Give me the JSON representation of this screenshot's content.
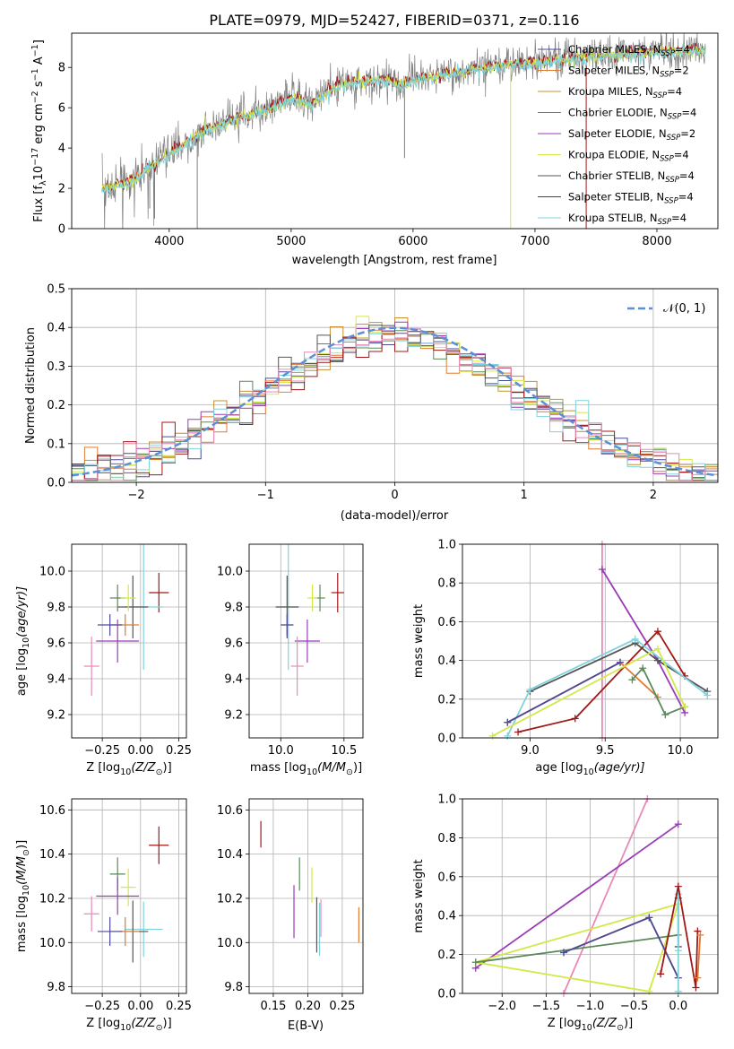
{
  "title": "PLATE=0979, MJD=52427, FIBERID=0371, z=0.116",
  "colors": {
    "chabrier_miles": "#4a4a9a",
    "salpeter_miles": "#e07b30",
    "kroupa_miles": "#c89030",
    "chabrier_elodie": "#5a8a5a",
    "salpeter_elodie": "#9a3cb8",
    "kroupa_elodie": "#d4e84a",
    "chabrier_stelib": "#555555",
    "salpeter_stelib": "#a01818",
    "kroupa_stelib": "#7fd3dc",
    "pink": "#e88ab8",
    "normal_curve": "#5b8fd9"
  },
  "chart_data": [
    {
      "type": "line",
      "title": "PLATE=0979, MJD=52427, FIBERID=0371, z=0.116",
      "xlabel": "wavelength [Angstrom, rest frame]",
      "ylabel_main": "Flux [f",
      "ylabel_sub": "λ",
      "ylabel_rest": "10",
      "ylabel_exp": "−17",
      "ylabel_units": " erg cm",
      "ylabel_units_exp": "−2",
      "ylabel_s": " s",
      "ylabel_s_exp": "−1",
      "ylabel_A": " A",
      "ylabel_A_exp": "−1",
      "ylabel_close": "]",
      "xlim": [
        3200,
        8500
      ],
      "ylim": [
        0,
        9.7
      ],
      "xticks": [
        "4000",
        "5000",
        "6000",
        "7000",
        "8000"
      ],
      "yticks": [
        "0",
        "2",
        "4",
        "6",
        "8"
      ],
      "legend_placement": "right",
      "legend": [
        {
          "name": "Chabrier MILES, N",
          "sub": "SSP",
          "tail": "=4"
        },
        {
          "name": "Salpeter MILES, N",
          "sub": "SSP",
          "tail": "=2"
        },
        {
          "name": "Kroupa MILES, N",
          "sub": "SSP",
          "tail": "=4"
        },
        {
          "name": "Chabrier ELODIE, N",
          "sub": "SSP",
          "tail": "=4"
        },
        {
          "name": "Salpeter ELODIE, N",
          "sub": "SSP",
          "tail": "=2"
        },
        {
          "name": "Kroupa ELODIE, N",
          "sub": "SSP",
          "tail": "=4"
        },
        {
          "name": "Chabrier STELIB, N",
          "sub": "SSP",
          "tail": "=4"
        },
        {
          "name": "Salpeter STELIB, N",
          "sub": "SSP",
          "tail": "=4"
        },
        {
          "name": "Kroupa STELIB, N",
          "sub": "SSP",
          "tail": "=4"
        }
      ],
      "continuum": [
        [
          3450,
          2.0
        ],
        [
          3700,
          2.4
        ],
        [
          3950,
          3.6
        ],
        [
          4100,
          4.1
        ],
        [
          4300,
          4.9
        ],
        [
          4600,
          5.6
        ],
        [
          4862,
          6.1
        ],
        [
          5000,
          6.5
        ],
        [
          5175,
          6.2
        ],
        [
          5300,
          6.9
        ],
        [
          5500,
          7.3
        ],
        [
          5800,
          7.4
        ],
        [
          5890,
          7.1
        ],
        [
          6000,
          7.4
        ],
        [
          6300,
          7.7
        ],
        [
          6563,
          8.0
        ],
        [
          6800,
          8.2
        ],
        [
          7000,
          8.3
        ],
        [
          7500,
          8.6
        ],
        [
          8000,
          8.8
        ],
        [
          8400,
          8.9
        ]
      ]
    },
    {
      "type": "bar",
      "xlabel": "(data-model)/error",
      "ylabel": "Normed distribution",
      "xlim": [
        -2.5,
        2.5
      ],
      "ylim": [
        0,
        0.5
      ],
      "xticks": [
        "−2",
        "−1",
        "0",
        "1",
        "2"
      ],
      "yticks": [
        "0.0",
        "0.1",
        "0.2",
        "0.3",
        "0.4",
        "0.5"
      ],
      "legend_label": "𝒩(0, 1)",
      "legend_placement": "top-right",
      "bin_width": 0.1,
      "bin_start": -2.5
    },
    {
      "type": "scatter",
      "xlabel": "Z [log",
      "xlabel_sub": "10",
      "xlabel_rest": "(Z/Z",
      "xlabel_sun": "⊙",
      "xlabel_close": ")]",
      "ylabel": "age  [log",
      "ylabel_sub": "10",
      "ylabel_rest": "(age/yr)]",
      "xlim": [
        -0.45,
        0.3
      ],
      "ylim": [
        9.07,
        10.15
      ],
      "xticks": [
        "−0.25",
        "0.00",
        "0.25"
      ],
      "yticks": [
        "9.2",
        "9.4",
        "9.6",
        "9.8",
        "10.0"
      ],
      "points": [
        {
          "c": "salpeter_stelib",
          "x": 0.12,
          "y": 9.88,
          "xe": 0.13,
          "ye": 0.22
        },
        {
          "c": "kroupa_stelib",
          "x": 0.02,
          "y": 9.8,
          "xe": 0.25,
          "ye": 0.7
        },
        {
          "c": "chabrier_stelib",
          "x": -0.05,
          "y": 9.8,
          "xe": 0.2,
          "ye": 0.35
        },
        {
          "c": "chabrier_elodie",
          "x": -0.15,
          "y": 9.85,
          "xe": 0.1,
          "ye": 0.15
        },
        {
          "c": "kroupa_elodie",
          "x": -0.08,
          "y": 9.85,
          "xe": 0.1,
          "ye": 0.15
        },
        {
          "c": "salpeter_miles",
          "x": -0.1,
          "y": 9.7,
          "xe": 0.18,
          "ye": 0.12
        },
        {
          "c": "chabrier_miles",
          "x": -0.2,
          "y": 9.7,
          "xe": 0.16,
          "ye": 0.12
        },
        {
          "c": "salpeter_elodie",
          "x": -0.15,
          "y": 9.61,
          "xe": 0.28,
          "ye": 0.24
        },
        {
          "c": "pink",
          "x": -0.32,
          "y": 9.47,
          "xe": 0.1,
          "ye": 0.33
        }
      ]
    },
    {
      "type": "scatter",
      "xlabel": "mass [log",
      "xlabel_sub": "10",
      "xlabel_rest": "(M/M",
      "xlabel_sun": "⊙",
      "xlabel_close": ")]",
      "xlim": [
        9.75,
        10.65
      ],
      "ylim": [
        9.07,
        10.15
      ],
      "xticks": [
        "10.0",
        "10.5"
      ],
      "yticks": [
        "9.2",
        "9.4",
        "9.6",
        "9.8",
        "10.0"
      ],
      "points": [
        {
          "c": "salpeter_stelib",
          "x": 10.45,
          "y": 9.88,
          "xe": 0.1,
          "ye": 0.22
        },
        {
          "c": "kroupa_stelib",
          "x": 10.06,
          "y": 9.8,
          "xe": 0.18,
          "ye": 0.7
        },
        {
          "c": "chabrier_stelib",
          "x": 10.05,
          "y": 9.8,
          "xe": 0.18,
          "ye": 0.35
        },
        {
          "c": "chabrier_elodie",
          "x": 10.31,
          "y": 9.85,
          "xe": 0.08,
          "ye": 0.15
        },
        {
          "c": "kroupa_elodie",
          "x": 10.25,
          "y": 9.85,
          "xe": 0.08,
          "ye": 0.15
        },
        {
          "c": "salpeter_miles",
          "x": 10.05,
          "y": 9.7,
          "xe": 0.1,
          "ye": 0.12
        },
        {
          "c": "chabrier_miles",
          "x": 10.05,
          "y": 9.7,
          "xe": 0.1,
          "ye": 0.12
        },
        {
          "c": "salpeter_elodie",
          "x": 10.21,
          "y": 9.61,
          "xe": 0.2,
          "ye": 0.24
        },
        {
          "c": "pink",
          "x": 10.13,
          "y": 9.47,
          "xe": 0.1,
          "ye": 0.33
        }
      ]
    },
    {
      "type": "line",
      "xlabel": "age  [log",
      "xlabel_sub": "10",
      "xlabel_rest": "(age/yr)]",
      "ylabel": "mass weight",
      "xlim": [
        8.55,
        10.25
      ],
      "ylim": [
        0,
        1.0
      ],
      "xticks": [
        "9.0",
        "9.5",
        "10.0"
      ],
      "yticks": [
        "0.0",
        "0.2",
        "0.4",
        "0.6",
        "0.8",
        "1.0"
      ],
      "series": [
        {
          "c": "pink",
          "x": [
            9.48,
            9.48
          ],
          "y": [
            0.0,
            1.0
          ]
        },
        {
          "c": "salpeter_elodie",
          "x": [
            9.48,
            9.85,
            10.03
          ],
          "y": [
            0.87,
            0.4,
            0.13
          ]
        },
        {
          "c": "chabrier_stelib",
          "x": [
            9.0,
            9.7,
            9.85,
            10.18
          ],
          "y": [
            0.24,
            0.49,
            0.4,
            0.24
          ]
        },
        {
          "c": "salpeter_stelib",
          "x": [
            8.92,
            9.3,
            9.85,
            10.03
          ],
          "y": [
            0.03,
            0.1,
            0.55,
            0.32
          ]
        },
        {
          "c": "kroupa_stelib",
          "x": [
            8.85,
            9.0,
            9.7,
            10.18
          ],
          "y": [
            0.01,
            0.25,
            0.51,
            0.22
          ]
        },
        {
          "c": "salpeter_miles",
          "x": [
            8.85,
            9.6,
            9.85
          ],
          "y": [
            0.08,
            0.39,
            0.21
          ]
        },
        {
          "c": "chabrier_elodie",
          "x": [
            9.68,
            9.75,
            9.9,
            10.03
          ],
          "y": [
            0.3,
            0.36,
            0.12,
            0.16
          ]
        },
        {
          "c": "kroupa_elodie",
          "x": [
            8.75,
            9.85,
            10.03
          ],
          "y": [
            0.01,
            0.46,
            0.16
          ]
        },
        {
          "c": "chabrier_miles",
          "x": [
            8.85,
            9.6
          ],
          "y": [
            0.08,
            0.39
          ]
        }
      ]
    },
    {
      "type": "scatter",
      "xlabel": "Z [log",
      "xlabel_sub": "10",
      "xlabel_rest": "(Z/Z",
      "xlabel_sun": "⊙",
      "xlabel_close": ")]",
      "ylabel": "mass [log",
      "ylabel_sub": "10",
      "ylabel_rest": "(M/M",
      "ylabel_sun": "⊙",
      "ylabel_close": ")]",
      "xlim": [
        -0.45,
        0.3
      ],
      "ylim": [
        9.77,
        10.65
      ],
      "xticks": [
        "−0.25",
        "0.00",
        "0.25"
      ],
      "yticks": [
        "9.8",
        "10.0",
        "10.2",
        "10.4",
        "10.6"
      ],
      "points": [
        {
          "c": "salpeter_stelib",
          "x": 0.12,
          "y": 10.44,
          "xe": 0.13,
          "ye": 0.17
        },
        {
          "c": "kroupa_stelib",
          "x": 0.02,
          "y": 10.06,
          "xe": 0.25,
          "ye": 0.25
        },
        {
          "c": "chabrier_stelib",
          "x": -0.05,
          "y": 10.05,
          "xe": 0.2,
          "ye": 0.28
        },
        {
          "c": "chabrier_elodie",
          "x": -0.15,
          "y": 10.31,
          "xe": 0.1,
          "ye": 0.15
        },
        {
          "c": "kroupa_elodie",
          "x": -0.08,
          "y": 10.25,
          "xe": 0.1,
          "ye": 0.17
        },
        {
          "c": "salpeter_miles",
          "x": -0.1,
          "y": 10.05,
          "xe": 0.18,
          "ye": 0.13
        },
        {
          "c": "chabrier_miles",
          "x": -0.2,
          "y": 10.05,
          "xe": 0.16,
          "ye": 0.13
        },
        {
          "c": "salpeter_elodie",
          "x": -0.15,
          "y": 10.21,
          "xe": 0.28,
          "ye": 0.17
        },
        {
          "c": "pink",
          "x": -0.32,
          "y": 10.13,
          "xe": 0.1,
          "ye": 0.16
        }
      ]
    },
    {
      "type": "scatter",
      "xlabel": "E(B-V)",
      "xlim": [
        0.115,
        0.28
      ],
      "ylim": [
        9.77,
        10.65
      ],
      "xticks": [
        "0.15",
        "0.20",
        "0.25"
      ],
      "yticks": [
        "9.8",
        "10.0",
        "10.2",
        "10.4",
        "10.6"
      ],
      "points": [
        {
          "c": "salpeter_stelib",
          "x": 0.132,
          "y": 10.49,
          "ye": 0.12
        },
        {
          "c": "salpeter_elodie",
          "x": 0.18,
          "y": 10.14,
          "ye": 0.24
        },
        {
          "c": "chabrier_elodie",
          "x": 0.188,
          "y": 10.31,
          "ye": 0.15
        },
        {
          "c": "kroupa_elodie",
          "x": 0.206,
          "y": 10.26,
          "ye": 0.16
        },
        {
          "c": "chabrier_stelib",
          "x": 0.213,
          "y": 10.08,
          "ye": 0.25
        },
        {
          "c": "pink",
          "x": 0.219,
          "y": 10.11,
          "ye": 0.17
        },
        {
          "c": "kroupa_stelib",
          "x": 0.217,
          "y": 10.06,
          "ye": 0.24
        },
        {
          "c": "salpeter_miles",
          "x": 0.274,
          "y": 10.08,
          "ye": 0.16
        }
      ]
    },
    {
      "type": "line",
      "xlabel": "Z [log",
      "xlabel_sub": "10",
      "xlabel_rest": "(Z/Z",
      "xlabel_sun": "⊙",
      "xlabel_close": ")]",
      "ylabel": "mass weight",
      "xlim": [
        -2.45,
        0.45
      ],
      "ylim": [
        0,
        1.0
      ],
      "xticks": [
        "−2.0",
        "−1.5",
        "−1.0",
        "−0.5",
        "0.0"
      ],
      "yticks": [
        "0.0",
        "0.2",
        "0.4",
        "0.6",
        "0.8",
        "1.0"
      ],
      "series": [
        {
          "c": "pink",
          "x": [
            -1.3,
            -0.35
          ],
          "y": [
            0.0,
            1.0
          ]
        },
        {
          "c": "salpeter_elodie",
          "x": [
            -2.3,
            0.0
          ],
          "y": [
            0.13,
            0.87
          ]
        },
        {
          "c": "kroupa_elodie",
          "x": [
            -2.3,
            -0.33,
            0.0,
            -2.3
          ],
          "y": [
            0.16,
            0.01,
            0.46,
            0.16
          ]
        },
        {
          "c": "chabrier_elodie",
          "x": [
            -2.3,
            0.0
          ],
          "y": [
            0.16,
            0.3
          ]
        },
        {
          "c": "salpeter_miles",
          "x": [
            -1.3,
            -0.33,
            0.0
          ],
          "y": [
            0.21,
            0.39,
            0.08
          ]
        },
        {
          "c": "chabrier_miles",
          "x": [
            -1.3,
            -0.33,
            0.0
          ],
          "y": [
            0.21,
            0.39,
            0.08
          ]
        },
        {
          "c": "chabrier_stelib",
          "x": [
            0.0,
            0.0
          ],
          "y": [
            0.24,
            0.49
          ]
        },
        {
          "c": "kroupa_stelib",
          "x": [
            0.0,
            0.0,
            0.0
          ],
          "y": [
            0.01,
            0.51,
            0.22
          ]
        },
        {
          "c": "salpeter_stelib",
          "x": [
            -0.2,
            0.0,
            0.2,
            0.22
          ],
          "y": [
            0.1,
            0.55,
            0.03,
            0.32
          ]
        },
        {
          "c": "salpeter_miles",
          "x": [
            0.22,
            0.25
          ],
          "y": [
            0.08,
            0.3
          ]
        }
      ]
    }
  ]
}
